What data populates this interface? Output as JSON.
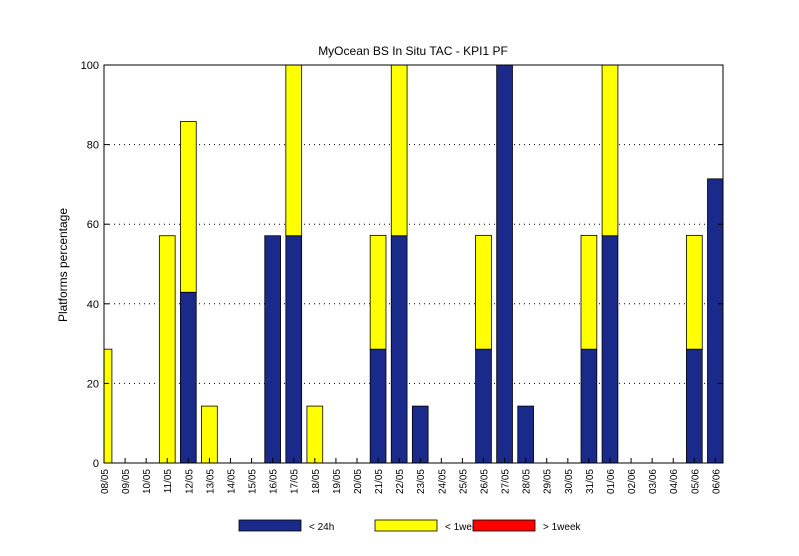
{
  "chart_data": {
    "type": "bar",
    "stacked": true,
    "title": "MyOcean  BS In Situ TAC - KPI1  PF",
    "xlabel": "",
    "ylabel": "Platforms percentage",
    "ylim": [
      0,
      100
    ],
    "yticks": [
      0,
      20,
      40,
      60,
      80,
      100
    ],
    "grid": "horizontal-dotted",
    "legend_position": "bottom",
    "categories": [
      "08/05",
      "09/05",
      "10/05",
      "11/05",
      "12/05",
      "13/05",
      "14/05",
      "15/05",
      "16/05",
      "17/05",
      "18/05",
      "19/05",
      "20/05",
      "21/05",
      "22/05",
      "23/05",
      "24/05",
      "25/05",
      "26/05",
      "27/05",
      "28/05",
      "29/05",
      "30/05",
      "31/05",
      "01/06",
      "02/06",
      "03/06",
      "04/06",
      "05/06",
      "06/06"
    ],
    "series": [
      {
        "name": "< 24h",
        "color": "#1a2a8a",
        "values": [
          0,
          0,
          0,
          0,
          42.9,
          0,
          0,
          0,
          57.1,
          57.1,
          0,
          0,
          0,
          28.6,
          57.1,
          14.3,
          0,
          0,
          28.6,
          100,
          14.3,
          0,
          0,
          28.6,
          57.1,
          0,
          0,
          0,
          28.6,
          71.4
        ]
      },
      {
        "name": "< 1week",
        "color": "#ffff00",
        "values": [
          28.6,
          0,
          0,
          57.1,
          42.9,
          14.3,
          0,
          0,
          0,
          42.9,
          14.3,
          0,
          0,
          28.6,
          42.9,
          0,
          0,
          0,
          28.6,
          0,
          0,
          0,
          0,
          28.6,
          42.9,
          0,
          0,
          0,
          28.6,
          0
        ]
      },
      {
        "name": "> 1week",
        "color": "#ff0000",
        "values": [
          0,
          0,
          0,
          0,
          0,
          0,
          0,
          0,
          0,
          0,
          0,
          0,
          0,
          0,
          0,
          0,
          0,
          0,
          0,
          0,
          0,
          0,
          0,
          0,
          0,
          0,
          0,
          0,
          0,
          0
        ]
      }
    ]
  }
}
